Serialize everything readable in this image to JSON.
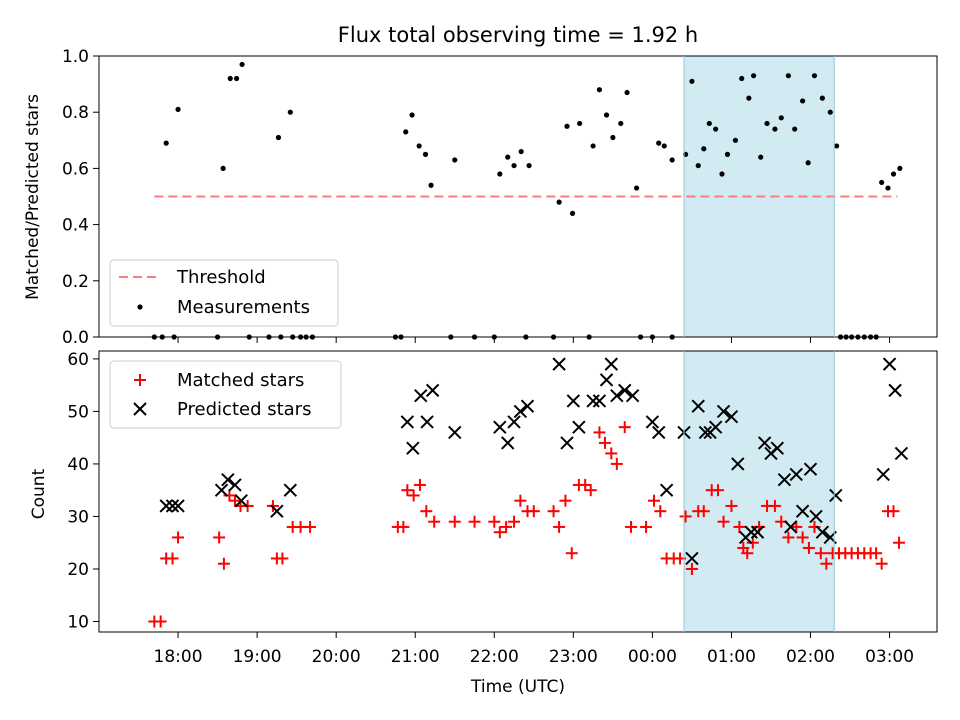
{
  "chart_data": [
    {
      "type": "scatter",
      "title": "Flux total observing time = 1.92 h",
      "ylabel": "Matched/Predicted stars",
      "xlabel": "",
      "ylim": [
        0,
        1.0
      ],
      "yticks": [
        "0.0",
        "0.2",
        "0.4",
        "0.6",
        "0.8",
        "1.0"
      ],
      "ytick_values": [
        0,
        0.2,
        0.4,
        0.6,
        0.8,
        1.0
      ],
      "legend": {
        "placement": "lower-left",
        "entries": [
          "Threshold",
          "Measurements"
        ]
      },
      "threshold": {
        "name": "Threshold",
        "value": 0.5,
        "x_range": [
          17.7,
          27.1
        ],
        "color": "#ff7b7b"
      },
      "highlight_span": {
        "x_range": [
          24.4,
          26.3
        ],
        "color": "#add8e6"
      },
      "series": [
        {
          "name": "Measurements",
          "color": "#000000",
          "points": [
            [
              17.7,
              0
            ],
            [
              17.8,
              0
            ],
            [
              17.85,
              0.69
            ],
            [
              17.95,
              0
            ],
            [
              18.0,
              0.81
            ],
            [
              18.5,
              0
            ],
            [
              18.57,
              0.6
            ],
            [
              18.66,
              0.92
            ],
            [
              18.74,
              0.92
            ],
            [
              18.81,
              0.97
            ],
            [
              18.9,
              0
            ],
            [
              19.15,
              0
            ],
            [
              19.27,
              0.71
            ],
            [
              19.3,
              0
            ],
            [
              19.42,
              0.8
            ],
            [
              19.45,
              0
            ],
            [
              19.55,
              0
            ],
            [
              19.62,
              0
            ],
            [
              19.7,
              0
            ],
            [
              20.75,
              0
            ],
            [
              20.82,
              0
            ],
            [
              20.88,
              0.73
            ],
            [
              20.96,
              0.79
            ],
            [
              21.05,
              0.68
            ],
            [
              21.13,
              0.65
            ],
            [
              21.2,
              0.54
            ],
            [
              21.5,
              0.63
            ],
            [
              21.45,
              0
            ],
            [
              21.75,
              0
            ],
            [
              22.0,
              0
            ],
            [
              22.07,
              0.58
            ],
            [
              22.17,
              0.64
            ],
            [
              22.25,
              0.61
            ],
            [
              22.34,
              0.66
            ],
            [
              22.44,
              0.61
            ],
            [
              22.4,
              0
            ],
            [
              22.75,
              0
            ],
            [
              22.82,
              0.48
            ],
            [
              22.92,
              0.75
            ],
            [
              22.99,
              0.44
            ],
            [
              23.08,
              0.76
            ],
            [
              23.2,
              0
            ],
            [
              23.25,
              0.68
            ],
            [
              23.33,
              0.88
            ],
            [
              23.42,
              0.79
            ],
            [
              23.5,
              0.71
            ],
            [
              23.6,
              0.76
            ],
            [
              23.68,
              0.87
            ],
            [
              23.8,
              0.53
            ],
            [
              23.85,
              0
            ],
            [
              24.0,
              0
            ],
            [
              24.08,
              0.69
            ],
            [
              24.15,
              0.68
            ],
            [
              24.25,
              0
            ],
            [
              24.25,
              0.63
            ],
            [
              24.42,
              0.65
            ],
            [
              24.5,
              0.91
            ],
            [
              24.58,
              0.61
            ],
            [
              24.65,
              0.67
            ],
            [
              24.72,
              0.76
            ],
            [
              24.8,
              0.74
            ],
            [
              24.88,
              0.58
            ],
            [
              24.95,
              0.65
            ],
            [
              25.05,
              0.7
            ],
            [
              25.13,
              0.92
            ],
            [
              25.22,
              0.85
            ],
            [
              25.28,
              0.93
            ],
            [
              25.37,
              0.64
            ],
            [
              25.45,
              0.76
            ],
            [
              25.55,
              0.74
            ],
            [
              25.63,
              0.78
            ],
            [
              25.72,
              0.93
            ],
            [
              25.8,
              0.74
            ],
            [
              25.9,
              0.84
            ],
            [
              25.97,
              0.62
            ],
            [
              26.05,
              0.93
            ],
            [
              26.15,
              0.85
            ],
            [
              26.25,
              0.8
            ],
            [
              26.33,
              0.68
            ],
            [
              26.38,
              0
            ],
            [
              26.45,
              0
            ],
            [
              26.52,
              0
            ],
            [
              26.6,
              0
            ],
            [
              26.68,
              0
            ],
            [
              26.76,
              0
            ],
            [
              26.83,
              0
            ],
            [
              26.9,
              0.55
            ],
            [
              26.98,
              0.53
            ],
            [
              27.05,
              0.58
            ],
            [
              27.13,
              0.6
            ]
          ]
        }
      ]
    },
    {
      "type": "scatter",
      "title": "",
      "ylabel": "Count",
      "xlabel": "Time (UTC)",
      "ylim": [
        8,
        61.5
      ],
      "yticks": [
        "10",
        "20",
        "30",
        "40",
        "50",
        "60"
      ],
      "ytick_values": [
        10,
        20,
        30,
        40,
        50,
        60
      ],
      "xlim": [
        17.0,
        27.6
      ],
      "xticks": [
        "18:00",
        "19:00",
        "20:00",
        "21:00",
        "22:00",
        "23:00",
        "00:00",
        "01:00",
        "02:00",
        "03:00"
      ],
      "xtick_values": [
        18,
        19,
        20,
        21,
        22,
        23,
        24,
        25,
        26,
        27
      ],
      "legend": {
        "placement": "upper-left",
        "entries": [
          "Matched stars",
          "Predicted stars"
        ]
      },
      "highlight_span": {
        "x_range": [
          24.4,
          26.3
        ],
        "color": "#add8e6"
      },
      "series": [
        {
          "name": "Matched stars",
          "color": "#ff0000",
          "points": [
            [
              17.7,
              10
            ],
            [
              17.78,
              10
            ],
            [
              17.85,
              22
            ],
            [
              17.93,
              22
            ],
            [
              18.0,
              26
            ],
            [
              18.52,
              26
            ],
            [
              18.58,
              21
            ],
            [
              18.65,
              34
            ],
            [
              18.72,
              33
            ],
            [
              18.79,
              32
            ],
            [
              18.88,
              32
            ],
            [
              19.2,
              32
            ],
            [
              19.25,
              22
            ],
            [
              19.32,
              22
            ],
            [
              19.45,
              28
            ],
            [
              19.55,
              28
            ],
            [
              19.67,
              28
            ],
            [
              20.78,
              28
            ],
            [
              20.85,
              28
            ],
            [
              20.9,
              35
            ],
            [
              20.98,
              34
            ],
            [
              21.06,
              36
            ],
            [
              21.14,
              31
            ],
            [
              21.24,
              29
            ],
            [
              21.5,
              29
            ],
            [
              21.75,
              29
            ],
            [
              22.0,
              29
            ],
            [
              22.07,
              27
            ],
            [
              22.15,
              28
            ],
            [
              22.25,
              29
            ],
            [
              22.33,
              33
            ],
            [
              22.42,
              31
            ],
            [
              22.5,
              31
            ],
            [
              22.75,
              31
            ],
            [
              22.82,
              28
            ],
            [
              22.9,
              33
            ],
            [
              22.98,
              23
            ],
            [
              23.07,
              36
            ],
            [
              23.15,
              36
            ],
            [
              23.22,
              35
            ],
            [
              23.33,
              46
            ],
            [
              23.4,
              44
            ],
            [
              23.48,
              42
            ],
            [
              23.55,
              40
            ],
            [
              23.65,
              47
            ],
            [
              23.73,
              28
            ],
            [
              23.92,
              28
            ],
            [
              24.02,
              33
            ],
            [
              24.1,
              31
            ],
            [
              24.18,
              22
            ],
            [
              24.27,
              22
            ],
            [
              24.35,
              22
            ],
            [
              24.42,
              30
            ],
            [
              24.5,
              20
            ],
            [
              24.58,
              31
            ],
            [
              24.65,
              31
            ],
            [
              24.75,
              35
            ],
            [
              24.83,
              35
            ],
            [
              24.9,
              29
            ],
            [
              25.0,
              32
            ],
            [
              25.1,
              28
            ],
            [
              25.15,
              24
            ],
            [
              25.2,
              23
            ],
            [
              25.27,
              25
            ],
            [
              25.35,
              28
            ],
            [
              25.45,
              32
            ],
            [
              25.55,
              32
            ],
            [
              25.63,
              29
            ],
            [
              25.72,
              26
            ],
            [
              25.82,
              28
            ],
            [
              25.9,
              26
            ],
            [
              25.98,
              24
            ],
            [
              26.05,
              28
            ],
            [
              26.13,
              23
            ],
            [
              26.2,
              21
            ],
            [
              26.28,
              23
            ],
            [
              26.36,
              23
            ],
            [
              26.44,
              23
            ],
            [
              26.52,
              23
            ],
            [
              26.6,
              23
            ],
            [
              26.68,
              23
            ],
            [
              26.76,
              23
            ],
            [
              26.83,
              23
            ],
            [
              26.9,
              21
            ],
            [
              26.98,
              31
            ],
            [
              27.05,
              31
            ],
            [
              27.12,
              25
            ]
          ]
        },
        {
          "name": "Predicted stars",
          "color": "#000000",
          "points": [
            [
              17.85,
              32
            ],
            [
              17.93,
              32
            ],
            [
              18.0,
              32
            ],
            [
              18.55,
              35
            ],
            [
              18.63,
              37
            ],
            [
              18.72,
              36
            ],
            [
              18.8,
              33
            ],
            [
              19.25,
              31
            ],
            [
              19.42,
              35
            ],
            [
              20.9,
              48
            ],
            [
              20.97,
              43
            ],
            [
              21.07,
              53
            ],
            [
              21.15,
              48
            ],
            [
              21.22,
              54
            ],
            [
              21.5,
              46
            ],
            [
              22.07,
              47
            ],
            [
              22.17,
              44
            ],
            [
              22.25,
              48
            ],
            [
              22.33,
              50
            ],
            [
              22.42,
              51
            ],
            [
              22.82,
              59
            ],
            [
              22.92,
              44
            ],
            [
              23.0,
              52
            ],
            [
              23.07,
              47
            ],
            [
              23.25,
              52
            ],
            [
              23.33,
              52
            ],
            [
              23.42,
              56
            ],
            [
              23.48,
              59
            ],
            [
              23.55,
              53
            ],
            [
              23.65,
              54
            ],
            [
              23.75,
              53
            ],
            [
              24.0,
              48
            ],
            [
              24.08,
              46
            ],
            [
              24.18,
              35
            ],
            [
              24.4,
              46
            ],
            [
              24.5,
              22
            ],
            [
              24.58,
              51
            ],
            [
              24.67,
              46
            ],
            [
              24.73,
              46
            ],
            [
              24.8,
              47
            ],
            [
              24.9,
              50
            ],
            [
              25.0,
              49
            ],
            [
              25.08,
              40
            ],
            [
              25.18,
              26
            ],
            [
              25.25,
              27
            ],
            [
              25.33,
              27
            ],
            [
              25.42,
              44
            ],
            [
              25.5,
              42
            ],
            [
              25.58,
              43
            ],
            [
              25.67,
              37
            ],
            [
              25.75,
              28
            ],
            [
              25.82,
              38
            ],
            [
              25.9,
              31
            ],
            [
              26.0,
              39
            ],
            [
              26.07,
              30
            ],
            [
              26.15,
              27
            ],
            [
              26.25,
              26
            ],
            [
              26.32,
              34
            ],
            [
              26.92,
              38
            ],
            [
              27.0,
              59
            ],
            [
              27.07,
              54
            ],
            [
              27.15,
              42
            ]
          ]
        }
      ]
    }
  ]
}
